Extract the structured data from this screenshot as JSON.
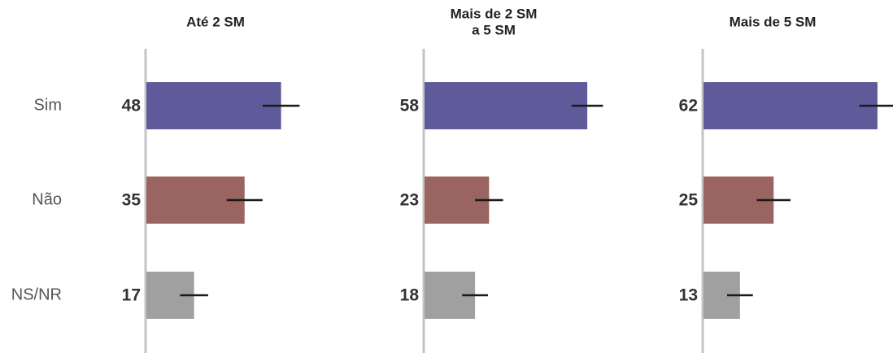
{
  "chart_data": [
    {
      "type": "bar",
      "title": [
        "Até 2 SM"
      ],
      "categories": [
        "Sim",
        "Não",
        "NS/NR"
      ],
      "colors": [
        "#5f5a99",
        "#9a6560",
        "#a0a0a0"
      ],
      "values": [
        48,
        35,
        17
      ],
      "errors": [
        6.6,
        6.4,
        5
      ]
    },
    {
      "type": "bar",
      "title": [
        "Mais de 2 SM",
        "a 5 SM"
      ],
      "values": [
        58,
        23,
        18
      ],
      "errors": [
        5.6,
        5,
        4.6
      ]
    },
    {
      "type": "bar",
      "title": [
        "Mais de 5 SM"
      ],
      "values": [
        62,
        25,
        13
      ],
      "errors": [
        6.5,
        6,
        4.6
      ]
    }
  ]
}
